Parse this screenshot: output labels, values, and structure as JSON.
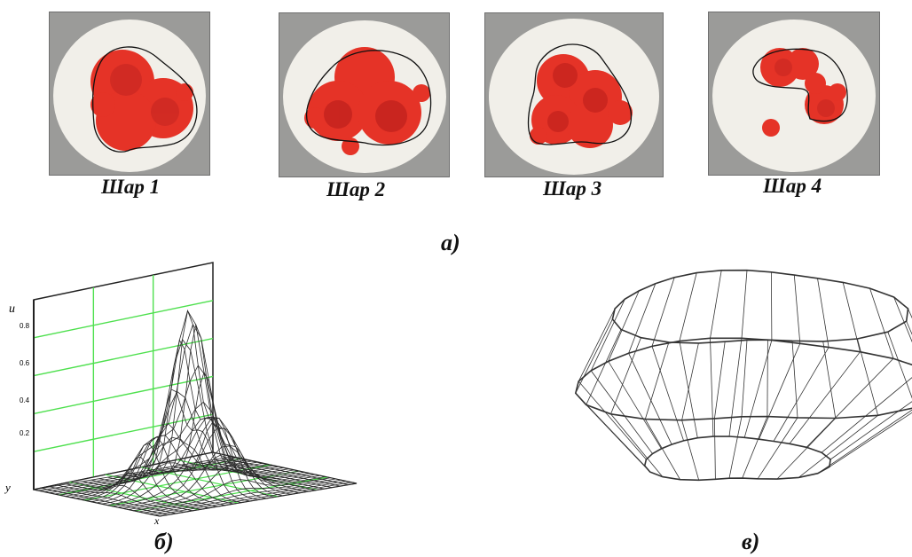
{
  "panel_a": {
    "label": "а)",
    "layers": [
      {
        "caption": "Шар 1"
      },
      {
        "caption": "Шар 2"
      },
      {
        "caption": "Шар 3"
      },
      {
        "caption": "Шар 4"
      }
    ],
    "colors": {
      "stain": "#e53327",
      "stain_dark": "#b81c1a",
      "disc": "#f1efe9",
      "background": "#9b9b99"
    }
  },
  "panel_b": {
    "label": "б)",
    "axis_u": "u",
    "axis_y": "y",
    "axis_x": "x",
    "u_ticks": [
      "0.8",
      "0.6",
      "0.4",
      "0.2"
    ],
    "mesh_color": "#2a2a2a",
    "grid_color": "#4ee04e"
  },
  "panel_v": {
    "label": "в)"
  }
}
